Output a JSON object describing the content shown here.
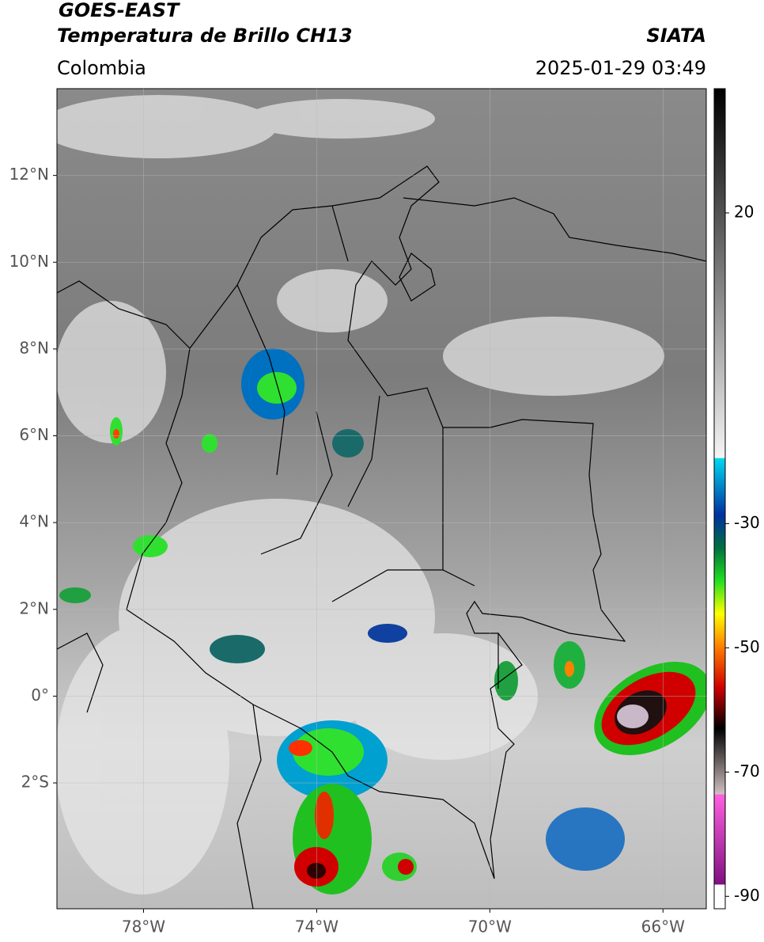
{
  "header": {
    "title": "GOES-EAST",
    "subtitle": "Temperatura de Brillo CH13",
    "source": "SIATA",
    "region": "Colombia",
    "datetime": "2025-01-29 03:49"
  },
  "map": {
    "lon_range": [
      -80,
      -65
    ],
    "lat_range": [
      -4.9,
      14
    ],
    "lat_ticks": [
      {
        "value": 12,
        "label": "12°N"
      },
      {
        "value": 10,
        "label": "10°N"
      },
      {
        "value": 8,
        "label": "8°N"
      },
      {
        "value": 6,
        "label": "6°N"
      },
      {
        "value": 4,
        "label": "4°N"
      },
      {
        "value": 2,
        "label": "2°N"
      },
      {
        "value": 0,
        "label": "0°"
      },
      {
        "value": -2,
        "label": "2°S"
      }
    ],
    "lon_ticks": [
      {
        "value": -78,
        "label": "78°W"
      },
      {
        "value": -74,
        "label": "74°W"
      },
      {
        "value": -70,
        "label": "70°W"
      },
      {
        "value": -66,
        "label": "66°W"
      }
    ]
  },
  "colorbar": {
    "range": [
      -92,
      40
    ],
    "ticks": [
      20,
      -30,
      -50,
      -70,
      -90
    ]
  }
}
